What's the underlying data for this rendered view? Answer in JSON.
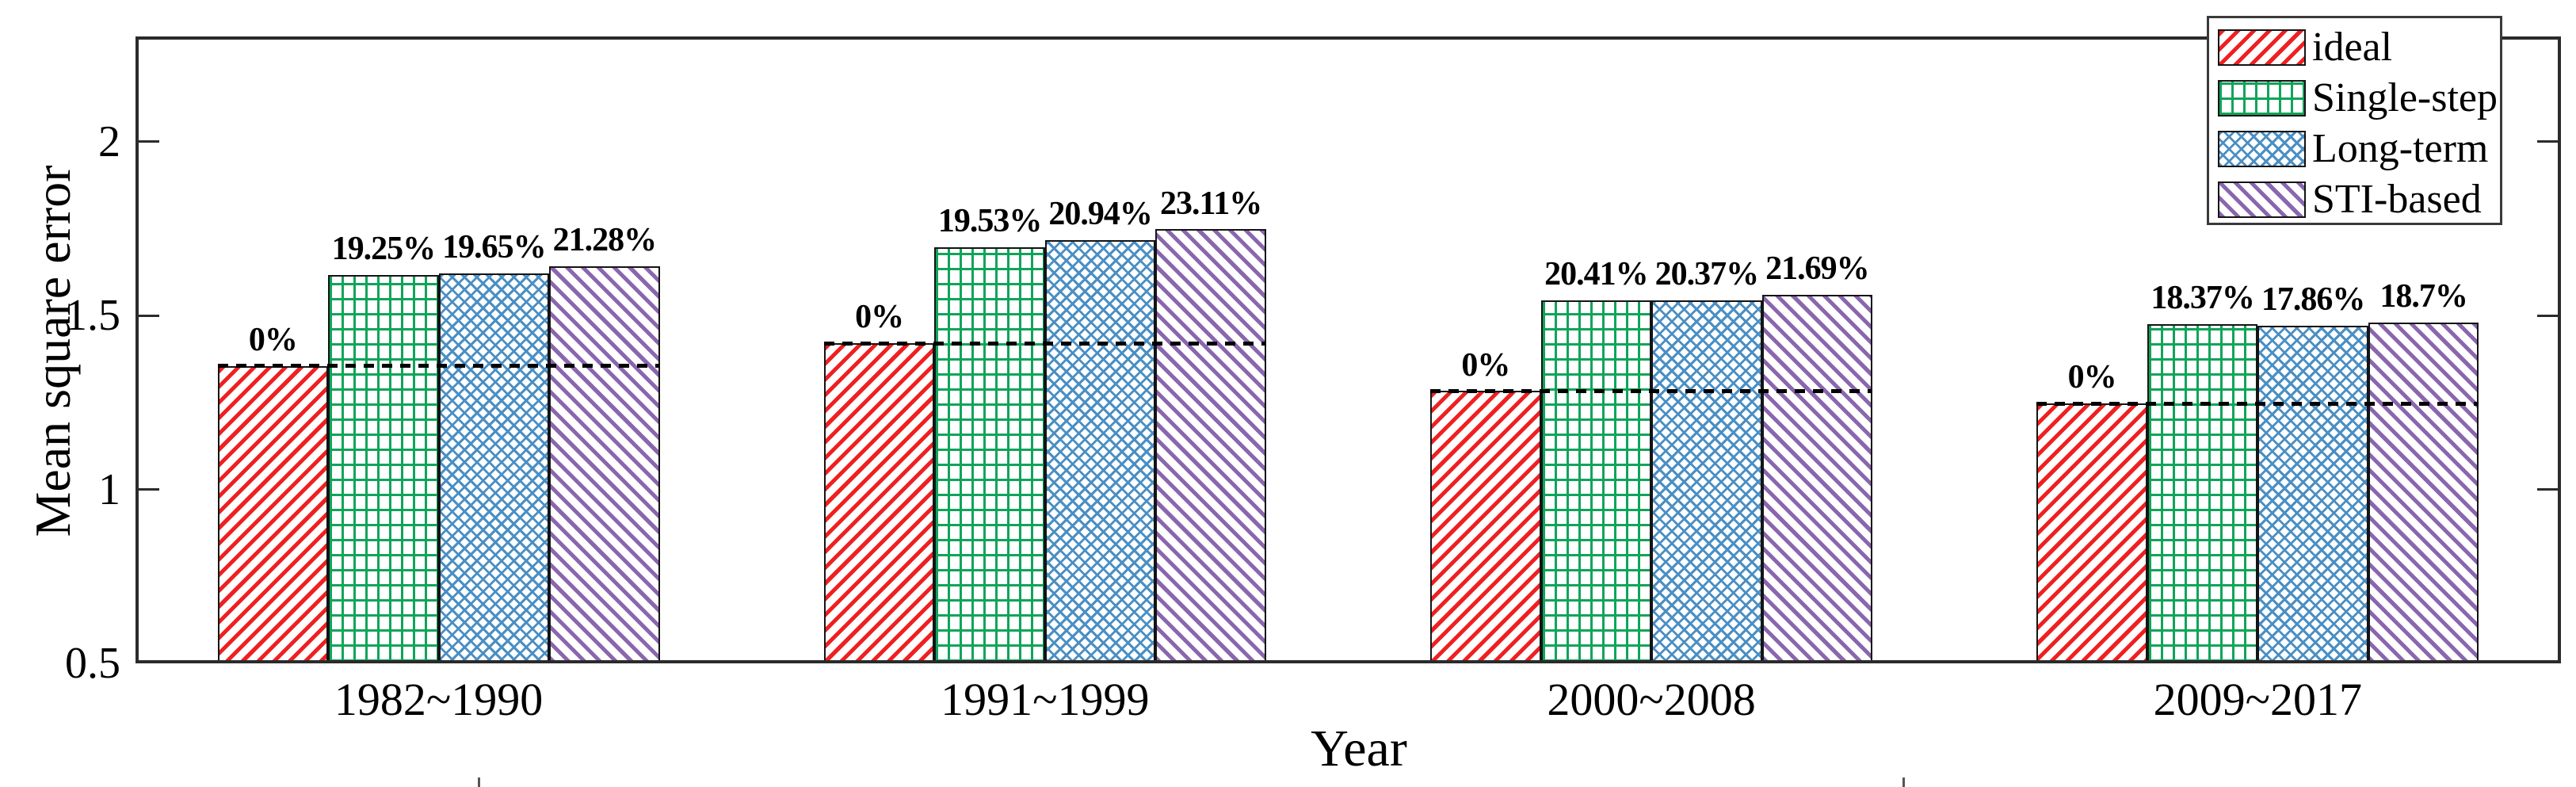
{
  "figure": {
    "background": "#ffffff",
    "axis_color": "#2b2b2b",
    "bar_outline_color": "#141414",
    "ideal_line_color": "#000000",
    "ideal_line_style": "dashed"
  },
  "chart_data": {
    "type": "bar",
    "title": "",
    "xlabel": "Year",
    "ylabel": "Mean square error",
    "categories": [
      "1982~1990",
      "1991~1999",
      "2000~2008",
      "2009~2017"
    ],
    "ylim": [
      0.5,
      2.303
    ],
    "yticks": {
      "values": [
        0.5,
        1,
        1.5,
        2
      ],
      "labels": [
        "0.5",
        "1",
        "1.5",
        "2"
      ]
    },
    "grid": false,
    "legend_position": "top-right-overlapping-axes",
    "bar_group_note": "dashed black line in each group marks the ideal bar height; labels above bars give % increase of MSE over ideal",
    "series": [
      {
        "name": "ideal",
        "pattern": "diag-up",
        "color": "#ee2021",
        "values": [
          1.355,
          1.42,
          1.283,
          1.247
        ],
        "pct_labels": [
          "0%",
          "0%",
          "0%",
          "0%"
        ]
      },
      {
        "name": "Single-step",
        "pattern": "grid",
        "color": "#10a45a",
        "values": [
          1.616,
          1.697,
          1.545,
          1.476
        ],
        "pct_labels": [
          "19.25%",
          "19.53%",
          "20.41%",
          "18.37%"
        ]
      },
      {
        "name": "Long-term",
        "pattern": "cross",
        "color": "#4a8fc4",
        "values": [
          1.621,
          1.717,
          1.544,
          1.47
        ],
        "pct_labels": [
          "19.65%",
          "20.94%",
          "20.37%",
          "17.86%"
        ]
      },
      {
        "name": "STI-based",
        "pattern": "diag-down",
        "color": "#8a66af",
        "values": [
          1.643,
          1.748,
          1.561,
          1.48
        ],
        "pct_labels": [
          "21.28%",
          "23.11%",
          "21.69%",
          "18.7%"
        ]
      }
    ],
    "ideal_reference_values": [
      1.355,
      1.42,
      1.283,
      1.247
    ],
    "bottom_artifact_marks_x": [
      603,
      2401
    ]
  }
}
